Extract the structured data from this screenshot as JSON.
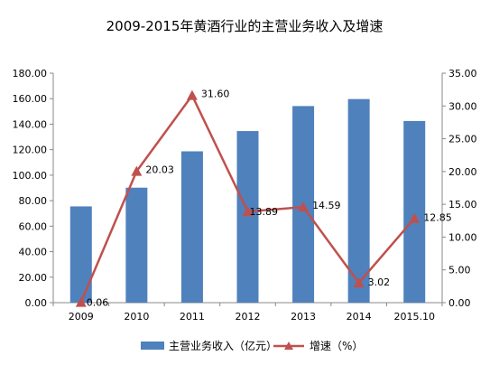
{
  "chart_data": {
    "type": "bar",
    "title": "2009-2015年黄酒行业的主营业务收入及增速",
    "categories": [
      "2009",
      "2010",
      "2011",
      "2012",
      "2013",
      "2014",
      "2015.10"
    ],
    "series": [
      {
        "name": "主营业务收入（亿元）",
        "type": "bar",
        "axis": "left",
        "values": [
          75.5,
          90.2,
          118.7,
          134.6,
          154.2,
          159.7,
          142.5
        ],
        "color": "#4F81BD"
      },
      {
        "name": "增速（%）",
        "type": "line",
        "axis": "right",
        "values": [
          0.06,
          20.03,
          31.6,
          13.89,
          14.59,
          3.02,
          12.85
        ],
        "labels": [
          "0.06",
          "20.03",
          "31.60",
          "13.89",
          "14.59",
          "3.02",
          "12.85"
        ],
        "color": "#C0504D",
        "marker": "triangle"
      }
    ],
    "y_left": {
      "ylim": [
        0,
        180
      ],
      "ticks": [
        "0.00",
        "20.00",
        "40.00",
        "60.00",
        "80.00",
        "100.00",
        "120.00",
        "140.00",
        "160.00",
        "180.00"
      ]
    },
    "y_right": {
      "ylim": [
        0,
        35
      ],
      "ticks": [
        "0.00",
        "5.00",
        "10.00",
        "15.00",
        "20.00",
        "25.00",
        "30.00",
        "35.00"
      ]
    },
    "grid": false,
    "legend": "bottom"
  }
}
